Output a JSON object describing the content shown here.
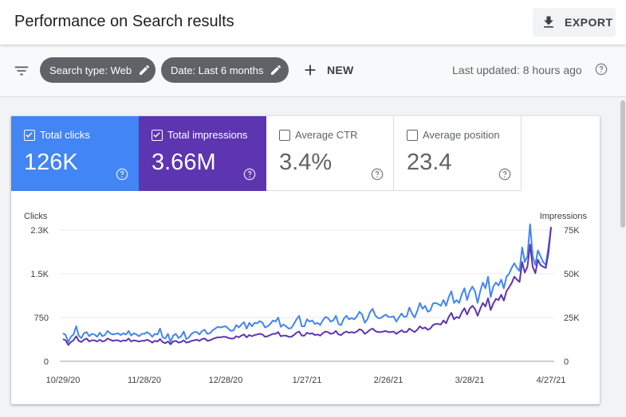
{
  "header": {
    "title": "Performance on Search results",
    "export_label": "EXPORT"
  },
  "filters": {
    "search_type": "Search type: Web",
    "date": "Date: Last 6 months",
    "new_label": "NEW",
    "last_updated": "Last updated: 8 hours ago"
  },
  "metrics": [
    {
      "label": "Total clicks",
      "value": "126K",
      "selected": true
    },
    {
      "label": "Total impressions",
      "value": "3.66M",
      "selected": true
    },
    {
      "label": "Average CTR",
      "value": "3.4%",
      "selected": false
    },
    {
      "label": "Average position",
      "value": "23.4",
      "selected": false
    }
  ],
  "colors": {
    "clicks": "#4285f4",
    "impressions": "#5e35b1",
    "accent": "#5f6368"
  },
  "chart_data": {
    "type": "line",
    "left_axis_label": "Clicks",
    "right_axis_label": "Impressions",
    "left_ticks": [
      "2.3K",
      "1.5K",
      "750",
      "0"
    ],
    "right_ticks": [
      "75K",
      "50K",
      "25K",
      "0"
    ],
    "x_ticks": [
      "10/29/20",
      "11/28/20",
      "12/28/20",
      "1/27/21",
      "2/26/21",
      "3/28/21",
      "4/27/21"
    ],
    "x_range": [
      "10/29/20",
      "4/27/21"
    ],
    "left_ylim": [
      0,
      2250
    ],
    "right_ylim": [
      0,
      75000
    ],
    "grid": true,
    "series": [
      {
        "name": "Clicks",
        "axis": "left",
        "values": [
          480,
          450,
          330,
          420,
          460,
          600,
          440,
          400,
          480,
          500,
          430,
          470,
          460,
          420,
          490,
          430,
          450,
          520,
          480,
          460,
          470,
          480,
          450,
          480,
          460,
          520,
          440,
          480,
          460,
          430,
          470,
          470,
          500,
          470,
          420,
          470,
          460,
          560,
          410,
          390,
          470,
          330,
          440,
          470,
          400,
          430,
          510,
          380,
          410,
          470,
          500,
          500,
          460,
          520,
          540,
          470,
          480,
          530,
          560,
          590,
          580,
          590,
          600,
          560,
          520,
          530,
          620,
          580,
          630,
          670,
          560,
          660,
          600,
          660,
          650,
          690,
          660,
          580,
          600,
          640,
          700,
          680,
          750,
          590,
          630,
          600,
          560,
          570,
          640,
          720,
          780,
          600,
          600,
          720,
          680,
          700,
          640,
          660,
          620,
          700,
          760,
          740,
          680,
          700,
          780,
          640,
          620,
          730,
          780,
          720,
          740,
          720,
          770,
          850,
          800,
          660,
          720,
          840,
          900,
          790,
          740,
          740,
          770,
          800,
          760,
          760,
          770,
          680,
          750,
          820,
          760,
          770,
          920,
          820,
          750,
          860,
          1000,
          900,
          950,
          850,
          870,
          990,
          1000,
          980,
          950,
          1050,
          950,
          1100,
          1200,
          1000,
          1050,
          1000,
          1150,
          1250,
          1050,
          1200,
          1280,
          1200,
          1000,
          1200,
          1350,
          1250,
          1450,
          1100,
          1280,
          1350,
          1300,
          1400,
          1250,
          1450,
          1500,
          1600,
          1680,
          1600,
          1550,
          1950,
          1700,
          1800,
          2350,
          1800,
          1650,
          1900,
          1800,
          1700,
          1650,
          1950,
          2300
        ]
      },
      {
        "name": "Impressions",
        "axis": "left",
        "values": [
          380,
          360,
          280,
          330,
          360,
          430,
          350,
          330,
          370,
          390,
          340,
          360,
          360,
          340,
          370,
          340,
          350,
          390,
          370,
          350,
          360,
          360,
          340,
          360,
          350,
          390,
          340,
          360,
          350,
          340,
          350,
          350,
          370,
          350,
          320,
          350,
          340,
          380,
          330,
          310,
          340,
          290,
          340,
          350,
          320,
          330,
          360,
          320,
          330,
          350,
          360,
          370,
          350,
          380,
          390,
          350,
          360,
          380,
          400,
          410,
          410,
          420,
          420,
          400,
          390,
          390,
          430,
          410,
          440,
          460,
          410,
          450,
          430,
          450,
          460,
          470,
          460,
          420,
          430,
          450,
          470,
          470,
          500,
          430,
          440,
          440,
          420,
          420,
          450,
          490,
          510,
          440,
          440,
          490,
          470,
          480,
          450,
          460,
          440,
          480,
          510,
          500,
          470,
          480,
          520,
          460,
          450,
          490,
          510,
          490,
          500,
          490,
          510,
          550,
          530,
          470,
          500,
          540,
          560,
          520,
          500,
          500,
          510,
          520,
          500,
          500,
          510,
          470,
          500,
          530,
          500,
          500,
          560,
          530,
          500,
          540,
          600,
          560,
          580,
          540,
          560,
          620,
          640,
          640,
          630,
          700,
          650,
          760,
          830,
          720,
          760,
          740,
          840,
          910,
          800,
          900,
          950,
          900,
          780,
          900,
          1000,
          940,
          1080,
          880,
          990,
          1070,
          1050,
          1140,
          1040,
          1200,
          1270,
          1340,
          1450,
          1400,
          1360,
          1700,
          1520,
          1620,
          2000,
          1620,
          1510,
          1740,
          1650,
          1620,
          1600,
          1850,
          2300
        ]
      }
    ]
  }
}
